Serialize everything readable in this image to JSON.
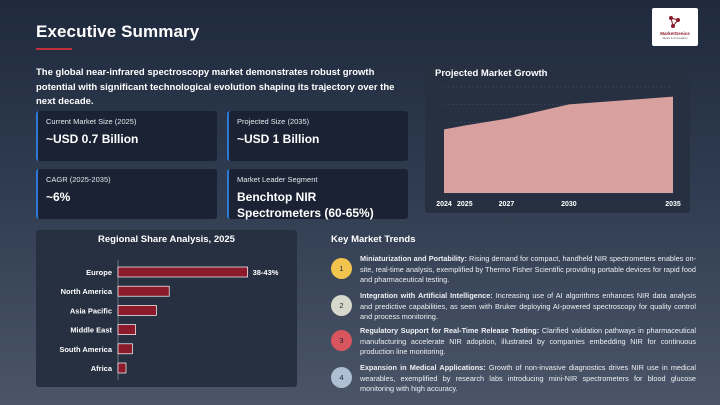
{
  "header": {
    "title": "Executive Summary",
    "logo_name": "MarketGenics",
    "logo_tagline": "Ideas & Innovation"
  },
  "intro": "The global near-infrared spectroscopy market demonstrates robust growth potential with significant technological evolution shaping its trajectory over the next decade.",
  "cards": [
    {
      "label": "Current Market Size (2025)",
      "value": "~USD 0.7 Billion"
    },
    {
      "label": "Projected Size (2035)",
      "value": "~USD 1 Billion"
    },
    {
      "label": "CAGR (2025-2035)",
      "value": "~6%"
    },
    {
      "label": "Market Leader Segment",
      "value": "Benchtop NIR Spectrometers (60-65%)"
    }
  ],
  "colors": {
    "accent_red": "#c0323a",
    "card_border": "#2b7bd6",
    "area_fill": "#d9a0a0",
    "bar_fill": "#8b1a2b"
  },
  "chart_data": [
    {
      "type": "area",
      "title": "Projected Market Growth",
      "categories": [
        "2024",
        "2025",
        "2027",
        "2030",
        "2035"
      ],
      "values": [
        0.66,
        0.7,
        0.77,
        0.92,
        1.0
      ],
      "ylim": [
        0,
        1.1
      ],
      "grid": true
    },
    {
      "type": "bar",
      "orientation": "horizontal",
      "title": "Regional Share Analysis, 2025",
      "categories": [
        "Europe",
        "North America",
        "Asia Pacific",
        "Middle East",
        "South America",
        "Africa"
      ],
      "values": [
        40.5,
        16,
        12,
        5.5,
        4.5,
        2.5
      ],
      "data_labels": [
        "38-43%",
        "",
        "",
        "",
        "",
        ""
      ],
      "xlim": [
        0,
        50
      ]
    }
  ],
  "trends": {
    "title": "Key Market Trends",
    "items": [
      {
        "num": "1",
        "color": "#f2c44e",
        "heading": "Miniaturization and Portability:",
        "text": " Rising demand for compact, handheld NIR spectrometers enables on-site, real-time analysis, exemplified by Thermo Fisher Scientific providing portable devices for rapid food and pharmaceutical testing."
      },
      {
        "num": "2",
        "color": "#d6d9cc",
        "heading": "Integration with Artificial Intelligence:",
        "text": " Increasing use of AI algorithms enhances NIR data analysis and predictive capabilities, as seen with Bruker deploying AI-powered spectroscopy for quality control and process monitoring."
      },
      {
        "num": "3",
        "color": "#d9555d",
        "heading": "Regulatory Support for Real-Time Release Testing:",
        "text": " Clarified validation pathways in pharmaceutical manufacturing accelerate NIR adoption, illustrated by companies embedding NIR for continuous production line monitoring."
      },
      {
        "num": "4",
        "color": "#aebfd3",
        "heading": "Expansion in Medical Applications:",
        "text": " Growth of non-invasive diagnostics drives NIR use in medical wearables, exemplified by research labs introducing mini-NIR spectrometers for blood glucose monitoring with high accuracy."
      }
    ]
  }
}
